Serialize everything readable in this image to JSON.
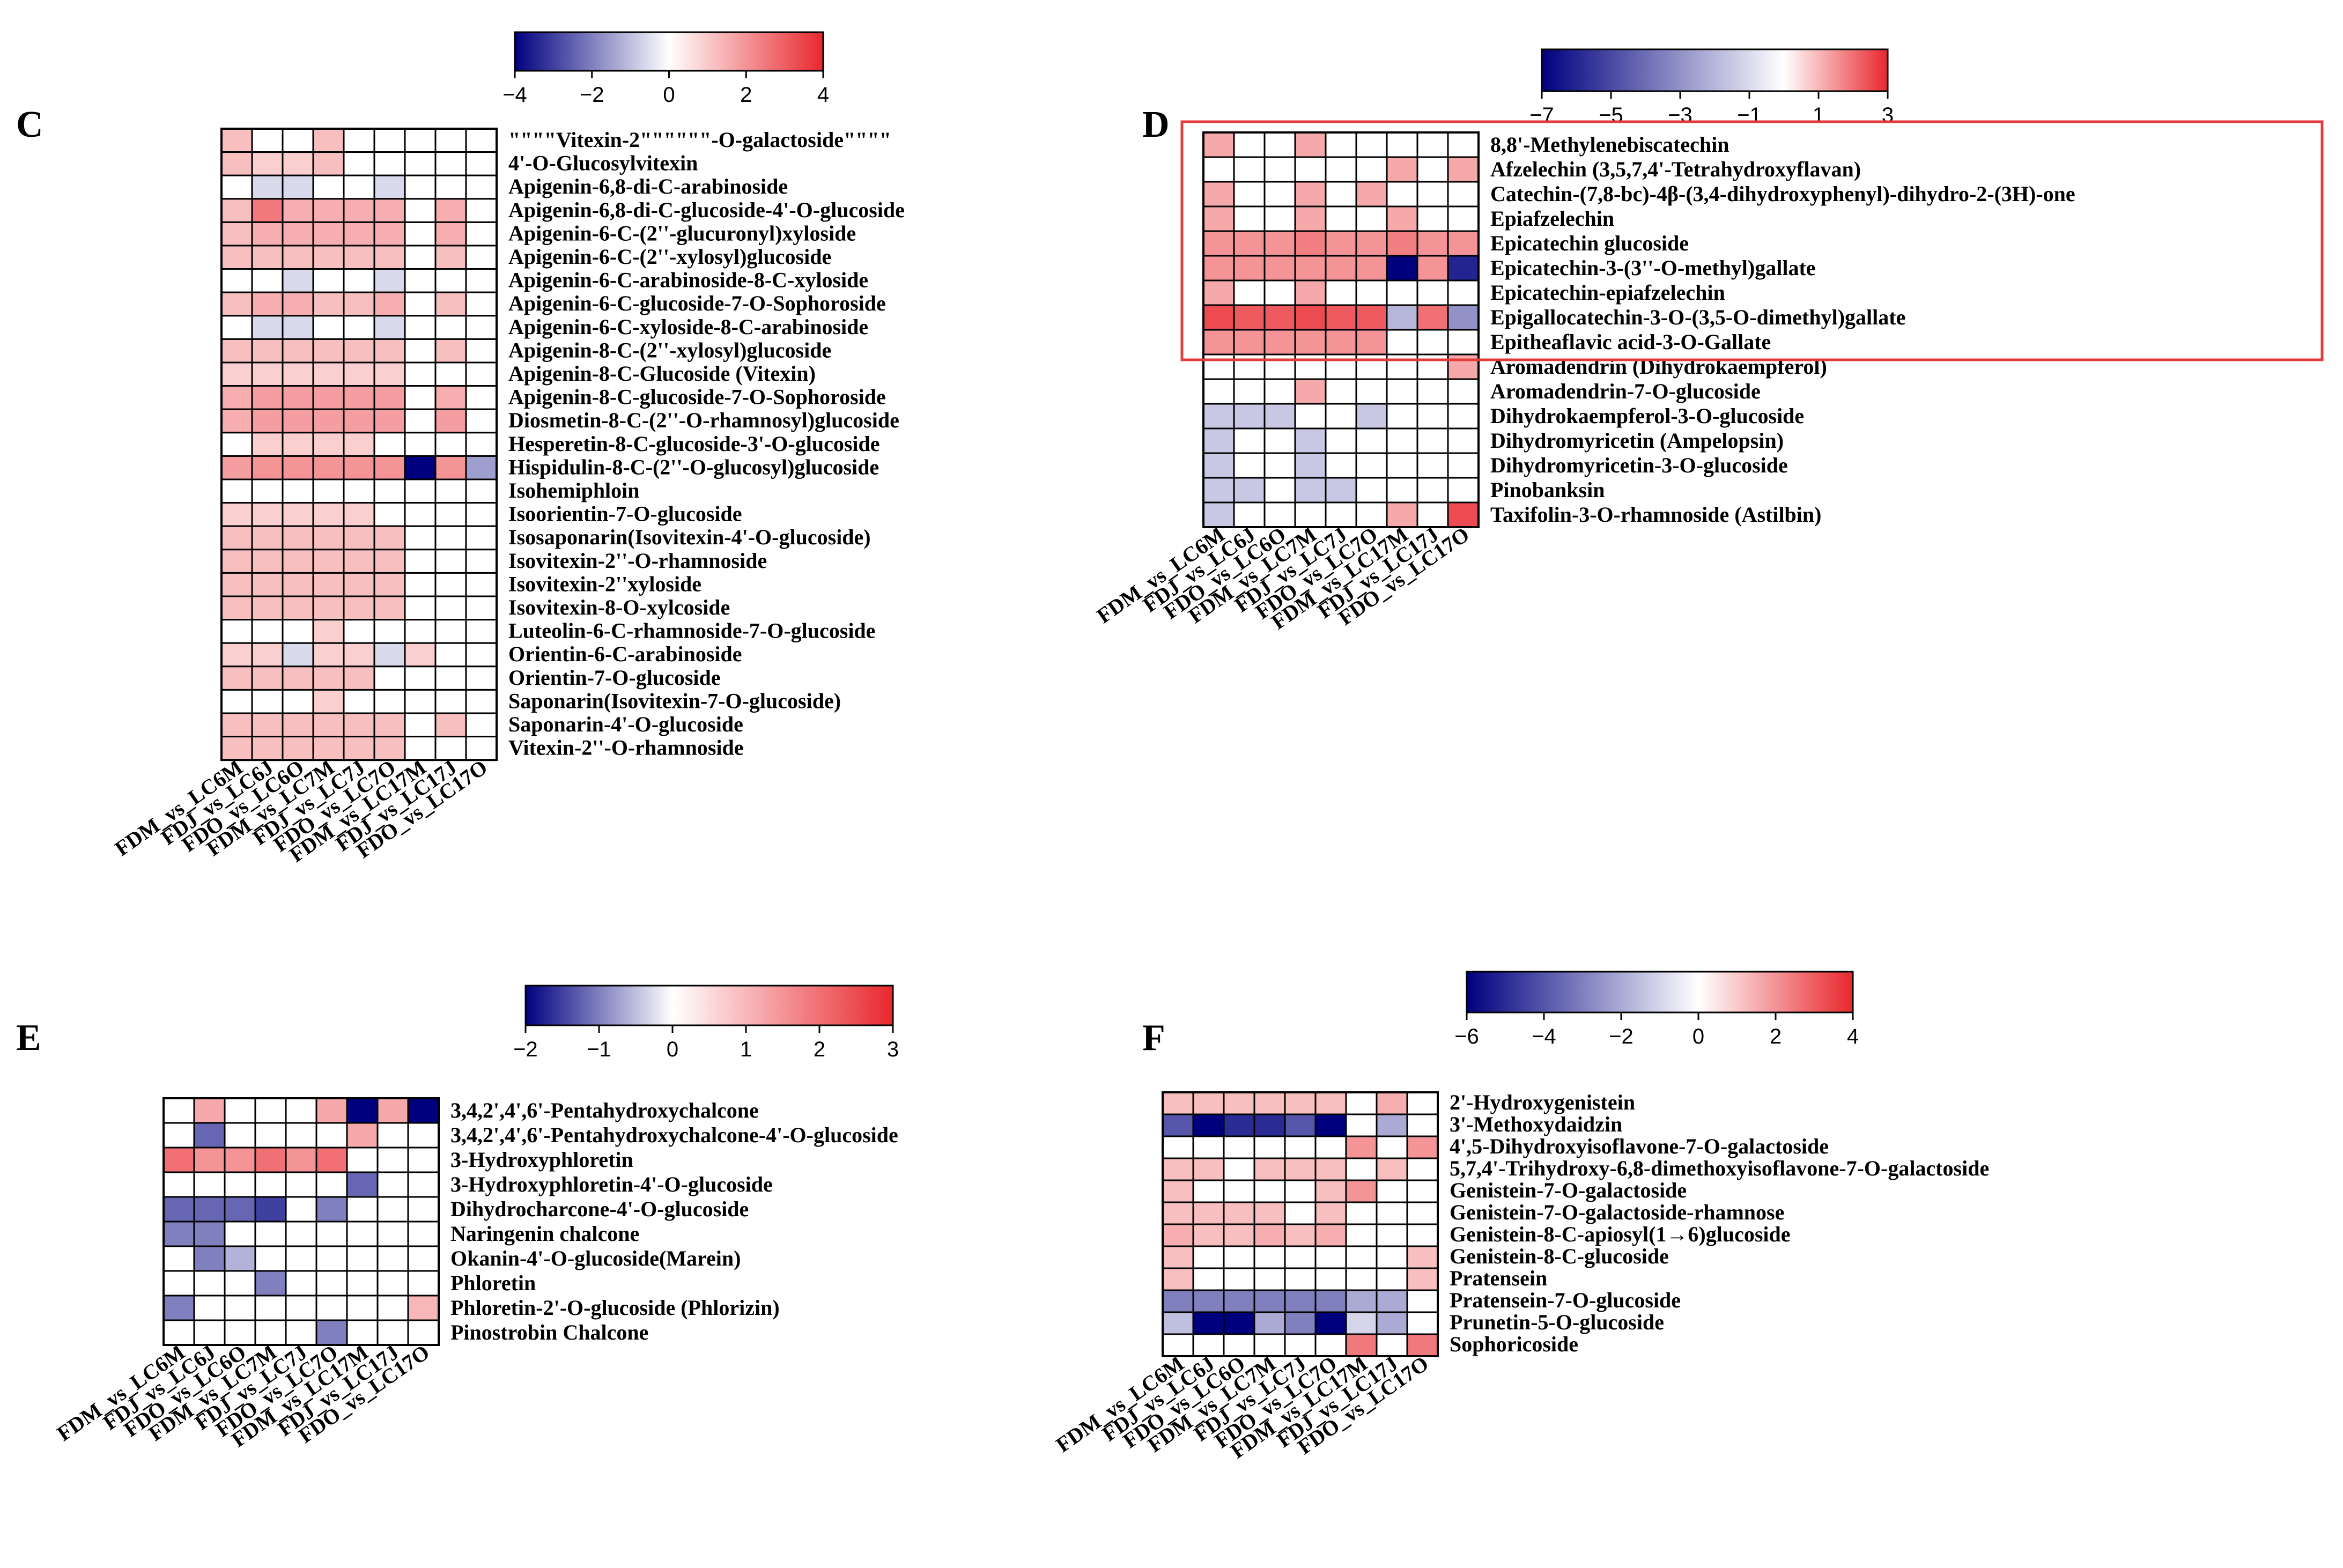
{
  "figure": {
    "columns": [
      "FDM_vs_LC6M",
      "FDJ_vs_LC6J",
      "FDO_vs_LC6O",
      "FDM_vs_LC7M",
      "FDJ_vs_LC7J",
      "FDO_vs_LC7O",
      "FDM_vs_LC17M",
      "FDJ_vs_LC17J",
      "FDO_vs_LC17O"
    ],
    "colors": {
      "low": "#00007f",
      "mid": "#ffffff",
      "high": "#e8282e",
      "grid": "#000000",
      "highlight_box": "#e33c3c",
      "text": "#000000"
    }
  },
  "chart_data": [
    {
      "type": "heatmap",
      "panel_label": "C",
      "title": "",
      "scale": {
        "min": -4,
        "max": 4,
        "ticks": [
          -4,
          -2,
          0,
          2,
          4
        ]
      },
      "rows": [
        "\"\"\"\"Vitexin-2\"\"\"\"\"\"-O-galactoside\"\"\"\"",
        "4'-O-Glucosylvitexin",
        "Apigenin-6,8-di-C-arabinoside",
        "Apigenin-6,8-di-C-glucoside-4'-O-glucoside",
        "Apigenin-6-C-(2''-glucuronyl)xyloside",
        "Apigenin-6-C-(2''-xylosyl)glucoside",
        "Apigenin-6-C-arabinoside-8-C-xyloside",
        "Apigenin-6-C-glucoside-7-O-Sophoroside",
        "Apigenin-6-C-xyloside-8-C-arabinoside",
        "Apigenin-8-C-(2''-xylosyl)glucoside",
        "Apigenin-8-C-Glucoside (Vitexin)",
        "Apigenin-8-C-glucoside-7-O-Sophoroside",
        "Diosmetin-8-C-(2''-O-rhamnosyl)glucoside",
        "Hesperetin-8-C-glucoside-3'-O-glucoside",
        "Hispidulin-8-C-(2''-O-glucosyl)glucoside",
        "Isohemiphloin",
        "Isoorientin-7-O-glucoside",
        "Isosaponarin(Isovitexin-4'-O-glucoside)",
        "Isovitexin-2''-O-rhamnoside",
        "Isovitexin-2''xyloside",
        "Isovitexin-8-O-xylcoside",
        "Luteolin-6-C-rhamnoside-7-O-glucoside",
        "Orientin-6-C-arabinoside",
        "Orientin-7-O-glucoside",
        "Saponarin(Isovitexin-7-O-glucoside)",
        "Saponarin-4'-O-glucoside",
        "Vitexin-2''-O-rhamnoside"
      ],
      "values": [
        [
          1.2,
          0,
          0,
          1.2,
          0,
          0,
          0,
          0,
          0
        ],
        [
          1.2,
          0.9,
          0.9,
          1.2,
          0,
          0,
          0,
          0,
          0
        ],
        [
          0,
          -0.6,
          -0.6,
          0,
          0,
          -0.6,
          0,
          0,
          0
        ],
        [
          1.2,
          2.5,
          1.5,
          1.5,
          1.5,
          1.5,
          0,
          1.5,
          0
        ],
        [
          1.2,
          1.5,
          1.5,
          1.5,
          1.5,
          1.5,
          0,
          1.5,
          0
        ],
        [
          1.2,
          1.2,
          1.2,
          1.2,
          1.2,
          1.2,
          0,
          1.2,
          0
        ],
        [
          0,
          0,
          -0.6,
          0,
          0,
          -0.6,
          0,
          0,
          0
        ],
        [
          1.2,
          1.5,
          1.5,
          1.2,
          1.2,
          1.5,
          0,
          1.2,
          0
        ],
        [
          0,
          -0.6,
          -0.6,
          0,
          0,
          -0.6,
          0,
          0,
          0
        ],
        [
          1.2,
          1.2,
          1.2,
          1.2,
          1.2,
          1.2,
          0,
          1.2,
          0
        ],
        [
          0.9,
          0.9,
          0.9,
          0.9,
          0.9,
          0.9,
          0,
          0,
          0
        ],
        [
          1.5,
          1.8,
          1.8,
          1.8,
          1.8,
          1.8,
          0,
          1.5,
          0
        ],
        [
          1.5,
          1.8,
          1.8,
          1.8,
          1.8,
          1.8,
          0,
          1.8,
          0
        ],
        [
          0,
          0.9,
          0.9,
          0.9,
          0.9,
          0,
          0,
          0,
          0
        ],
        [
          1.8,
          2.0,
          2.0,
          2.0,
          2.0,
          2.0,
          -4,
          2.0,
          -1.5
        ],
        [
          0,
          0,
          0,
          0,
          0,
          0,
          0,
          0,
          0
        ],
        [
          0.9,
          0.9,
          0.9,
          0.9,
          0.9,
          0,
          0,
          0,
          0
        ],
        [
          1.2,
          1.2,
          1.2,
          1.2,
          1.2,
          1.2,
          0,
          0,
          0
        ],
        [
          1.2,
          1.2,
          1.2,
          1.2,
          1.2,
          1.2,
          0,
          0,
          0
        ],
        [
          1.2,
          1.2,
          1.2,
          1.2,
          1.2,
          1.2,
          0,
          0,
          0
        ],
        [
          1.2,
          1.2,
          1.2,
          1.2,
          1.2,
          1.2,
          0,
          0,
          0
        ],
        [
          0,
          0,
          0,
          0.9,
          0,
          0,
          0,
          0,
          0
        ],
        [
          0.9,
          0.9,
          -0.6,
          0.9,
          0.9,
          -0.6,
          0.9,
          0,
          0
        ],
        [
          1.2,
          1.2,
          1.2,
          1.2,
          1.2,
          0,
          0,
          0,
          0
        ],
        [
          0,
          0,
          0,
          0.9,
          0,
          0,
          0,
          0,
          0
        ],
        [
          1.2,
          1.2,
          1.2,
          1.2,
          1.2,
          1.2,
          0,
          1.2,
          0
        ],
        [
          1.2,
          1.2,
          1.2,
          1.2,
          1.2,
          1.2,
          0,
          0,
          0
        ]
      ]
    },
    {
      "type": "heatmap",
      "panel_label": "D",
      "title": "",
      "scale": {
        "min": -7,
        "max": 3,
        "ticks": [
          -7,
          -5,
          -3,
          -1,
          1,
          3
        ]
      },
      "highlight_rows": [
        0,
        8
      ],
      "rows": [
        "8,8'-Methylenebiscatechin",
        "Afzelechin (3,5,7,4'-Tetrahydroxyflavan)",
        "Catechin-(7,8-bc)-4β-(3,4-dihydroxyphenyl)-dihydro-2-(3H)-one",
        "Epiafzelechin",
        "Epicatechin glucoside",
        "Epicatechin-3-(3''-O-methyl)gallate",
        "Epicatechin-epiafzelechin",
        "Epigallocatechin-3-O-(3,5-O-dimethyl)gallate",
        "Epitheaflavic acid-3-O-Gallate",
        "Aromadendrin (Dihydrokaempferol)",
        "Aromadendrin-7-O-glucoside",
        "Dihydrokaempferol-3-O-glucoside",
        "Dihydromyricetin (Ampelopsin)",
        "Dihydromyricetin-3-O-glucoside",
        "Pinobanksin",
        "Taxifolin-3-O-rhamnoside (Astilbin)"
      ],
      "values": [
        [
          1.2,
          0,
          0,
          1.2,
          0,
          0,
          0,
          0,
          0
        ],
        [
          0,
          0,
          0,
          0,
          0,
          0,
          1.2,
          0,
          1.2
        ],
        [
          1.2,
          0,
          0,
          1.2,
          0,
          1.2,
          0,
          0,
          0
        ],
        [
          1.2,
          0,
          0,
          1.2,
          0,
          0,
          1.2,
          0,
          0
        ],
        [
          1.5,
          1.5,
          1.5,
          1.8,
          1.5,
          1.5,
          1.8,
          1.5,
          1.5
        ],
        [
          1.5,
          1.5,
          1.5,
          1.5,
          1.5,
          1.5,
          -7,
          1.5,
          -6
        ],
        [
          1.2,
          0,
          0,
          1.2,
          0,
          0,
          0,
          0,
          0
        ],
        [
          2.5,
          2.3,
          2.3,
          2.5,
          2.3,
          2.3,
          -2,
          2.0,
          -3
        ],
        [
          1.5,
          1.5,
          1.5,
          1.5,
          1.5,
          1.5,
          0,
          0,
          0
        ],
        [
          0,
          0,
          0,
          0,
          0,
          0,
          0,
          0,
          1.2
        ],
        [
          0,
          0,
          0,
          1.2,
          0,
          0,
          0,
          0,
          0
        ],
        [
          -1.5,
          -1.5,
          -1.5,
          0,
          0,
          -1.5,
          0,
          0,
          0
        ],
        [
          -1.5,
          0,
          0,
          -1.5,
          0,
          0,
          0,
          0,
          0
        ],
        [
          -1.5,
          0,
          0,
          -1.5,
          0,
          0,
          0,
          0,
          0
        ],
        [
          -1.5,
          -1.5,
          0,
          -1.5,
          -1.5,
          0,
          0,
          0,
          0
        ],
        [
          -1.5,
          0,
          0,
          0,
          0,
          0,
          1.2,
          0,
          2.5
        ]
      ]
    },
    {
      "type": "heatmap",
      "panel_label": "E",
      "title": "",
      "scale": {
        "min": -2,
        "max": 3,
        "ticks": [
          -2,
          -1,
          0,
          1,
          2,
          3
        ]
      },
      "rows": [
        "3,4,2',4',6'-Pentahydroxychalcone",
        "3,4,2',4',6'-Pentahydroxychalcone-4'-O-glucoside",
        "3-Hydroxyphloretin",
        "3-Hydroxyphloretin-4'-O-glucoside",
        "Dihydrocharcone-4'-O-glucoside",
        "Naringenin chalcone",
        "Okanin-4'-O-glucoside(Marein)",
        "Phloretin",
        "Phloretin-2'-O-glucoside (Phlorizin)",
        "Pinostrobin Chalcone"
      ],
      "values": [
        [
          0,
          1.2,
          0,
          0,
          0,
          1.2,
          -2,
          1.2,
          -2
        ],
        [
          0,
          -1.2,
          0,
          0,
          0,
          0,
          1.2,
          0,
          0
        ],
        [
          2.0,
          1.5,
          1.5,
          2.0,
          1.5,
          2.0,
          0,
          0,
          0
        ],
        [
          0,
          0,
          0,
          0,
          0,
          0,
          -1.2,
          0,
          0
        ],
        [
          -1.2,
          -1.2,
          -1.2,
          -1.5,
          0,
          -1.0,
          0,
          0,
          0
        ],
        [
          -1.0,
          -1.0,
          0,
          0,
          0,
          0,
          0,
          0,
          0
        ],
        [
          0,
          -1.0,
          -0.6,
          0,
          0,
          0,
          0,
          0,
          0
        ],
        [
          0,
          0,
          0,
          -1.0,
          0,
          0,
          0,
          0,
          0
        ],
        [
          -1.0,
          0,
          0,
          0,
          0,
          0,
          0,
          0,
          1.0
        ],
        [
          0,
          0,
          0,
          0,
          0,
          -1.0,
          0,
          0,
          0
        ]
      ]
    },
    {
      "type": "heatmap",
      "panel_label": "F",
      "title": "",
      "scale": {
        "min": -6,
        "max": 4,
        "ticks": [
          -6,
          -4,
          -2,
          0,
          2,
          4
        ]
      },
      "rows": [
        "2'-Hydroxygenistein",
        "3'-Methoxydaidzin",
        "4',5-Dihydroxyisoflavone-7-O-galactoside",
        "5,7,4'-Trihydroxy-6,8-dimethoxyisoflavone-7-O-galactoside",
        "Genistein-7-O-galactoside",
        "Genistein-7-O-galactoside-rhamnose",
        "Genistein-8-C-apiosyl(1→6)glucoside",
        "Genistein-8-C-glucoside",
        "Pratensein",
        "Pratensein-7-O-glucoside",
        "Prunetin-5-O-glucoside",
        "Sophoricoside"
      ],
      "values": [
        [
          1.2,
          1.2,
          1.2,
          1.2,
          1.2,
          1.2,
          0,
          1.5,
          0
        ],
        [
          -4,
          -6,
          -5,
          -5,
          -4,
          -6,
          0,
          -2,
          0
        ],
        [
          0,
          0,
          0,
          0,
          0,
          0,
          2,
          0,
          2
        ],
        [
          1.2,
          1.2,
          0,
          1.2,
          1.2,
          1.2,
          0,
          1.2,
          0
        ],
        [
          1.2,
          0,
          0,
          0,
          0,
          1.2,
          2,
          0,
          0
        ],
        [
          1.2,
          1.2,
          1.2,
          1.2,
          0,
          1.2,
          0,
          0,
          0
        ],
        [
          1.5,
          1.2,
          1.2,
          1.5,
          1.2,
          1.5,
          0,
          0,
          0
        ],
        [
          1.2,
          0,
          0,
          0,
          0,
          0,
          0,
          0,
          1.2
        ],
        [
          1.2,
          0,
          0,
          0,
          0,
          0,
          0,
          0,
          1.2
        ],
        [
          -3,
          -3,
          -3,
          -3,
          -3,
          -3,
          -2,
          -2,
          0
        ],
        [
          -1.5,
          -6,
          -6,
          -2,
          -3,
          -6,
          -1,
          -2,
          0
        ],
        [
          0,
          0,
          0,
          0,
          0,
          0,
          2.5,
          0,
          2.5
        ]
      ]
    }
  ]
}
